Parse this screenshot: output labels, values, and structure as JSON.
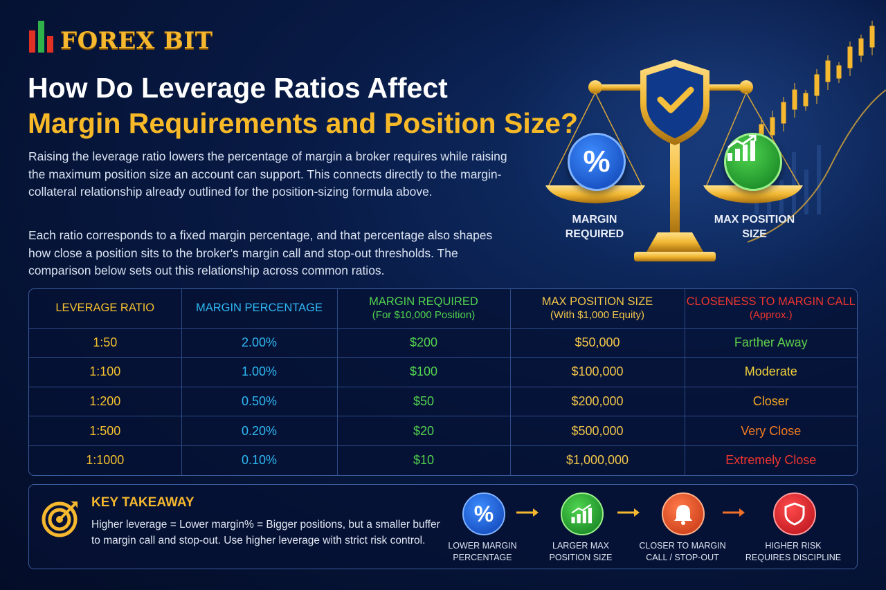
{
  "brand": {
    "name": "FOREX BIT"
  },
  "title": {
    "line1": "How Do Leverage Ratios Affect",
    "line2": "Margin Requirements and Position Size?"
  },
  "paragraphs": [
    "Raising the leverage ratio lowers the percentage of margin a broker requires while raising the maximum position size an account can support. This connects directly to the margin-collateral relationship already outlined for the position-sizing formula above.",
    "Each ratio corresponds to a fixed margin percentage, and that percentage also shapes how close a position sits to the broker's margin call and stop-out thresholds. The comparison below sets out this relationship across common ratios."
  ],
  "scale": {
    "left_label": "MARGIN REQUIRED",
    "left_label_lines": [
      "MARGIN",
      "REQUIRED"
    ],
    "right_label_lines": [
      "MAX POSITION",
      "SIZE"
    ],
    "left_symbol": "%",
    "colors": {
      "gold": "#f2b833",
      "blue": "#1a5de0",
      "green": "#22a836"
    }
  },
  "table": {
    "headers": [
      {
        "label": "LEVERAGE RATIO",
        "sub": ""
      },
      {
        "label": "MARGIN PERCENTAGE",
        "sub": ""
      },
      {
        "label": "MARGIN REQUIRED",
        "sub": "(For $10,000 Position)"
      },
      {
        "label": "MAX POSITION SIZE",
        "sub": "(With $1,000 Equity)"
      },
      {
        "label": "CLOSENESS TO MARGIN CALL",
        "sub": "(Approx.)"
      }
    ],
    "rows": [
      {
        "ratio": "1:50",
        "margin_pct": "2.00%",
        "margin_req": "$200",
        "max_pos": "$50,000",
        "closeness": "Farther Away",
        "closeness_color": "#5fd14a"
      },
      {
        "ratio": "1:100",
        "margin_pct": "1.00%",
        "margin_req": "$100",
        "max_pos": "$100,000",
        "closeness": "Moderate",
        "closeness_color": "#f1d23a"
      },
      {
        "ratio": "1:200",
        "margin_pct": "0.50%",
        "margin_req": "$50",
        "max_pos": "$200,000",
        "closeness": "Closer",
        "closeness_color": "#f5a623"
      },
      {
        "ratio": "1:500",
        "margin_pct": "0.20%",
        "margin_req": "$20",
        "max_pos": "$500,000",
        "closeness": "Very Close",
        "closeness_color": "#f27a1f"
      },
      {
        "ratio": "1:1000",
        "margin_pct": "0.10%",
        "margin_req": "$10",
        "max_pos": "$1,000,000",
        "closeness": "Extremely Close",
        "closeness_color": "#f0362e"
      }
    ],
    "column_colors": {
      "ratio": "#f5c02e",
      "margin_pct": "#2fb7f2",
      "margin_req": "#52d44e",
      "max_pos": "#f3c64a"
    }
  },
  "takeaway": {
    "title": "KEY TAKEAWAY",
    "text": "Higher leverage = Lower margin% = Bigger positions, but a smaller buffer to margin call and stop-out. Use higher leverage with strict risk control.",
    "steps": [
      {
        "line1": "LOWER MARGIN",
        "line2": "PERCENTAGE",
        "icon": "percent-icon",
        "symbol": "%"
      },
      {
        "line1": "LARGER MAX",
        "line2": "POSITION SIZE",
        "icon": "growth-chart-icon"
      },
      {
        "line1": "CLOSER TO MARGIN",
        "line2": "CALL / STOP-OUT",
        "icon": "bell-icon"
      },
      {
        "line1": "HIGHER RISK",
        "line2": "REQUIRES DISCIPLINE",
        "icon": "shield-icon"
      }
    ]
  }
}
